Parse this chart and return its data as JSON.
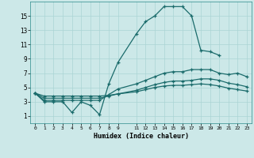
{
  "title": "",
  "xlabel": "Humidex (Indice chaleur)",
  "bg_color": "#cce8e8",
  "grid_color": "#aad4d4",
  "line_color": "#1a6b6b",
  "xlim": [
    -0.5,
    23.5
  ],
  "ylim": [
    0,
    17
  ],
  "xtick_vals": [
    0,
    1,
    2,
    3,
    4,
    5,
    6,
    7,
    8,
    9,
    11,
    12,
    13,
    14,
    15,
    16,
    17,
    18,
    19,
    20,
    21,
    22,
    23
  ],
  "xtick_labels": [
    "0",
    "1",
    "2",
    "3",
    "4",
    "5",
    "6",
    "7",
    "8",
    "9",
    "11",
    "12",
    "13",
    "14",
    "15",
    "16",
    "17",
    "18",
    "19",
    "20",
    "21",
    "22",
    "23"
  ],
  "yticks": [
    1,
    3,
    5,
    7,
    9,
    11,
    13,
    15
  ],
  "series": [
    {
      "x": [
        0,
        1,
        2,
        3,
        4,
        5,
        6,
        7,
        8,
        9,
        11,
        12,
        13,
        14,
        15,
        16,
        17,
        18,
        19,
        20
      ],
      "y": [
        4.2,
        3.0,
        3.0,
        3.0,
        1.5,
        3.0,
        2.5,
        1.2,
        5.5,
        8.5,
        12.5,
        14.2,
        15.0,
        16.3,
        16.3,
        16.3,
        15.0,
        10.2,
        10.0,
        9.5
      ]
    },
    {
      "x": [
        0,
        1,
        2,
        3,
        4,
        5,
        6,
        7,
        8,
        9,
        11,
        12,
        13,
        14,
        15,
        16,
        17,
        18,
        19,
        20,
        21,
        22,
        23
      ],
      "y": [
        4.2,
        3.2,
        3.2,
        3.2,
        3.2,
        3.2,
        3.2,
        3.2,
        4.0,
        4.8,
        5.5,
        6.0,
        6.5,
        7.0,
        7.2,
        7.2,
        7.5,
        7.5,
        7.5,
        7.0,
        6.8,
        7.0,
        6.5
      ]
    },
    {
      "x": [
        0,
        1,
        2,
        3,
        4,
        5,
        6,
        7,
        8,
        9,
        11,
        12,
        13,
        14,
        15,
        16,
        17,
        18,
        19,
        20,
        21,
        22,
        23
      ],
      "y": [
        4.2,
        3.5,
        3.5,
        3.5,
        3.5,
        3.5,
        3.5,
        3.5,
        3.8,
        4.1,
        4.6,
        5.0,
        5.4,
        5.7,
        5.9,
        5.9,
        6.0,
        6.2,
        6.2,
        6.0,
        5.6,
        5.4,
        5.1
      ]
    },
    {
      "x": [
        0,
        1,
        2,
        3,
        4,
        5,
        6,
        7,
        8,
        9,
        11,
        12,
        13,
        14,
        15,
        16,
        17,
        18,
        19,
        20,
        21,
        22,
        23
      ],
      "y": [
        4.2,
        3.8,
        3.8,
        3.8,
        3.8,
        3.8,
        3.8,
        3.8,
        3.9,
        4.1,
        4.4,
        4.7,
        5.0,
        5.2,
        5.3,
        5.3,
        5.4,
        5.5,
        5.4,
        5.2,
        4.9,
        4.7,
        4.5
      ]
    }
  ]
}
